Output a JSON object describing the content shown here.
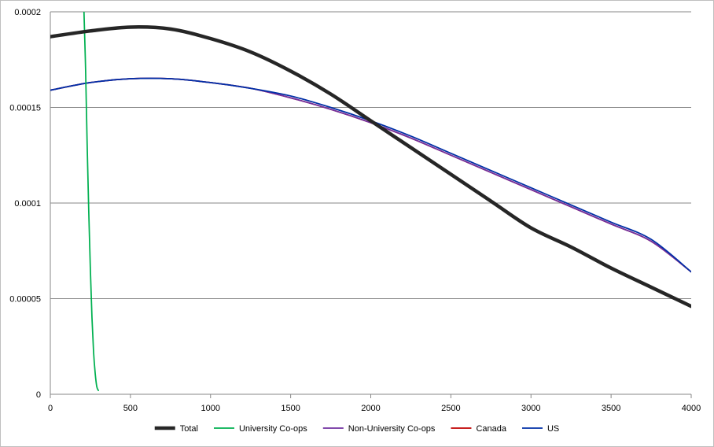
{
  "chart_data": {
    "type": "line",
    "title": "",
    "xlabel": "",
    "ylabel": "",
    "xlim": [
      0,
      4000
    ],
    "ylim": [
      0,
      0.0002
    ],
    "grid": "horizontal",
    "legend_position": "bottom",
    "x_ticks": [
      "0",
      "500",
      "1000",
      "1500",
      "2000",
      "2500",
      "3000",
      "3500",
      "4000"
    ],
    "y_ticks": [
      "0",
      "0.00005",
      "0.0001",
      "0.00015",
      "0.0002"
    ],
    "series": [
      {
        "name": "Total",
        "color": "#262626",
        "width": "thick",
        "x": [
          0,
          250,
          500,
          750,
          1000,
          1250,
          1500,
          1750,
          2000,
          2250,
          2500,
          2750,
          3000,
          3250,
          3500,
          3750,
          4000
        ],
        "y": [
          0.000187,
          0.00019,
          0.000192,
          0.000191,
          0.000186,
          0.000179,
          0.000169,
          0.000157,
          0.000143,
          0.000129,
          0.000115,
          0.000101,
          8.7e-05,
          7.7e-05,
          6.6e-05,
          5.6e-05,
          4.6e-05
        ]
      },
      {
        "name": "University Co-ops",
        "color": "#00b050",
        "width": "normal",
        "x": [
          210,
          220,
          230,
          240,
          250,
          260,
          270,
          280,
          290,
          300
        ],
        "y": [
          0.0002,
          0.00017,
          0.00013,
          9.5e-05,
          6.5e-05,
          4e-05,
          2.2e-05,
          1.1e-05,
          4e-06,
          2e-06
        ]
      },
      {
        "name": "Non-University Co-ops",
        "color": "#7030a0",
        "width": "normal",
        "x": [
          0,
          250,
          500,
          750,
          1000,
          1250,
          1500,
          1750,
          2000,
          2250,
          2500,
          2750,
          3000,
          3250,
          3500,
          3750,
          4000
        ],
        "y": [
          0.000159,
          0.000163,
          0.000165,
          0.000165,
          0.000163,
          0.00016,
          0.000155,
          0.000149,
          0.000142,
          0.000134,
          0.000125,
          0.000116,
          0.000107,
          9.8e-05,
          8.9e-05,
          8e-05,
          6.4e-05
        ]
      },
      {
        "name": "Canada",
        "color": "#c00000",
        "width": "normal",
        "x": [
          0,
          250,
          500,
          750,
          1000,
          1250,
          1500,
          1750,
          2000,
          2250,
          2500,
          2750,
          3000,
          3250,
          3500,
          3750,
          4000
        ],
        "y": [
          0.000159,
          0.000163,
          0.000165,
          0.000165,
          0.000163,
          0.00016,
          0.000155,
          0.000149,
          0.000142,
          0.000134,
          0.000125,
          0.000116,
          0.000107,
          9.8e-05,
          8.9e-05,
          8e-05,
          6.4e-05
        ]
      },
      {
        "name": "US",
        "color": "#002fa7",
        "width": "normal",
        "x": [
          0,
          250,
          500,
          750,
          1000,
          1250,
          1500,
          1750,
          2000,
          2250,
          2500,
          2750,
          3000,
          3250,
          3500,
          3750,
          4000
        ],
        "y": [
          0.000159,
          0.000163,
          0.000165,
          0.000165,
          0.000163,
          0.00016,
          0.000156,
          0.00015,
          0.000143,
          0.000135,
          0.000126,
          0.000117,
          0.000108,
          9.9e-05,
          9e-05,
          8.1e-05,
          6.4e-05
        ]
      }
    ]
  }
}
